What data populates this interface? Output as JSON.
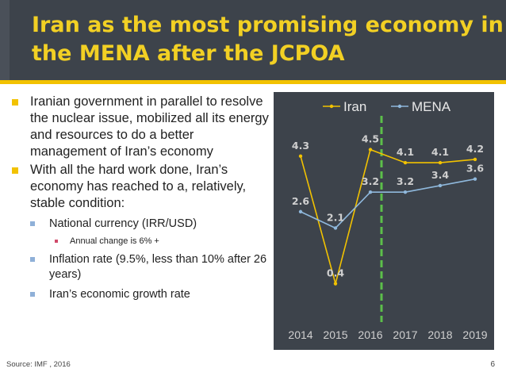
{
  "slide": {
    "title_line1": "Iran as the most promising economy in",
    "title_line2": "the MENA after the JCPOA",
    "source": "Source: IMF , 2016",
    "page_number": "6"
  },
  "bullets": [
    {
      "text": "Iranian government in parallel to resolve the nuclear issue, mobilized all its energy and resources to do a better management of Iran’s economy"
    },
    {
      "text": "With all the hard work done, Iran’s economy has reached to a, relatively, stable condition:"
    }
  ],
  "sub_bullets": [
    {
      "text": "National currency (IRR/USD)"
    },
    {
      "text": "Inflation rate (9.5%, less than 10% after 26 years)"
    },
    {
      "text": "Iran’s economic growth rate"
    }
  ],
  "sub_sub_bullets": [
    {
      "text": "Annual change is 6% +"
    }
  ],
  "colors": {
    "title_bg": "#3d434b",
    "title_text": "#f2d024",
    "accent": "#f2c200",
    "iran": "#f2c200",
    "mena": "#8fb8dc",
    "divider": "#5cbf4a"
  },
  "chart_data": {
    "type": "line",
    "categories": [
      "2014",
      "2015",
      "2016",
      "2017",
      "2018",
      "2019"
    ],
    "series": [
      {
        "name": "Iran",
        "values": [
          4.3,
          0.4,
          4.5,
          4.1,
          4.1,
          4.2
        ],
        "labels": [
          "4.3",
          "0.4",
          "4.5",
          "4.1",
          "4.1",
          "4.2"
        ]
      },
      {
        "name": "MENA",
        "values": [
          2.6,
          2.1,
          3.2,
          3.2,
          3.4,
          3.6
        ],
        "labels": [
          "2.6",
          "2.1",
          "3.2",
          "3.2",
          "3.4",
          "3.6"
        ]
      }
    ],
    "ylim": [
      0,
      5
    ],
    "grid": false,
    "legend": "top",
    "divider_between": [
      "2016",
      "2017"
    ]
  }
}
